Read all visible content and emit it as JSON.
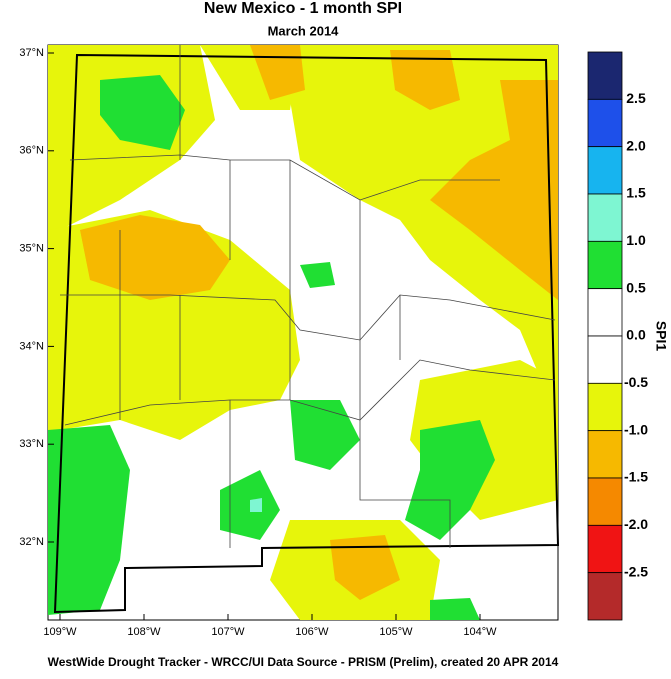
{
  "title": "New Mexico - 1 month SPI",
  "subtitle": "March 2014",
  "lat_labels": [
    "37°N",
    "36°N",
    "35°N",
    "34°N",
    "33°N",
    "32°N"
  ],
  "lon_labels": [
    "109°W",
    "108°W",
    "107°W",
    "106°W",
    "105°W",
    "104°W"
  ],
  "legend": {
    "title": "SPI1",
    "ticks": [
      "2.5",
      "2.0",
      "1.5",
      "1.0",
      "0.5",
      "0.0",
      "-0.5",
      "-1.0",
      "-1.5",
      "-2.0",
      "-2.5"
    ],
    "colors": [
      "#1b2770",
      "#1e50ea",
      "#17b4ef",
      "#7ef6d2",
      "#20df33",
      "#ffffff",
      "#ffffff",
      "#e7f50b",
      "#f6b900",
      "#f58900",
      "#f01414",
      "#b42a2a"
    ]
  },
  "footer": "WestWide Drought Tracker - WRCC/UI  Data Source - PRISM (Prelim), created 20 APR 2014"
}
